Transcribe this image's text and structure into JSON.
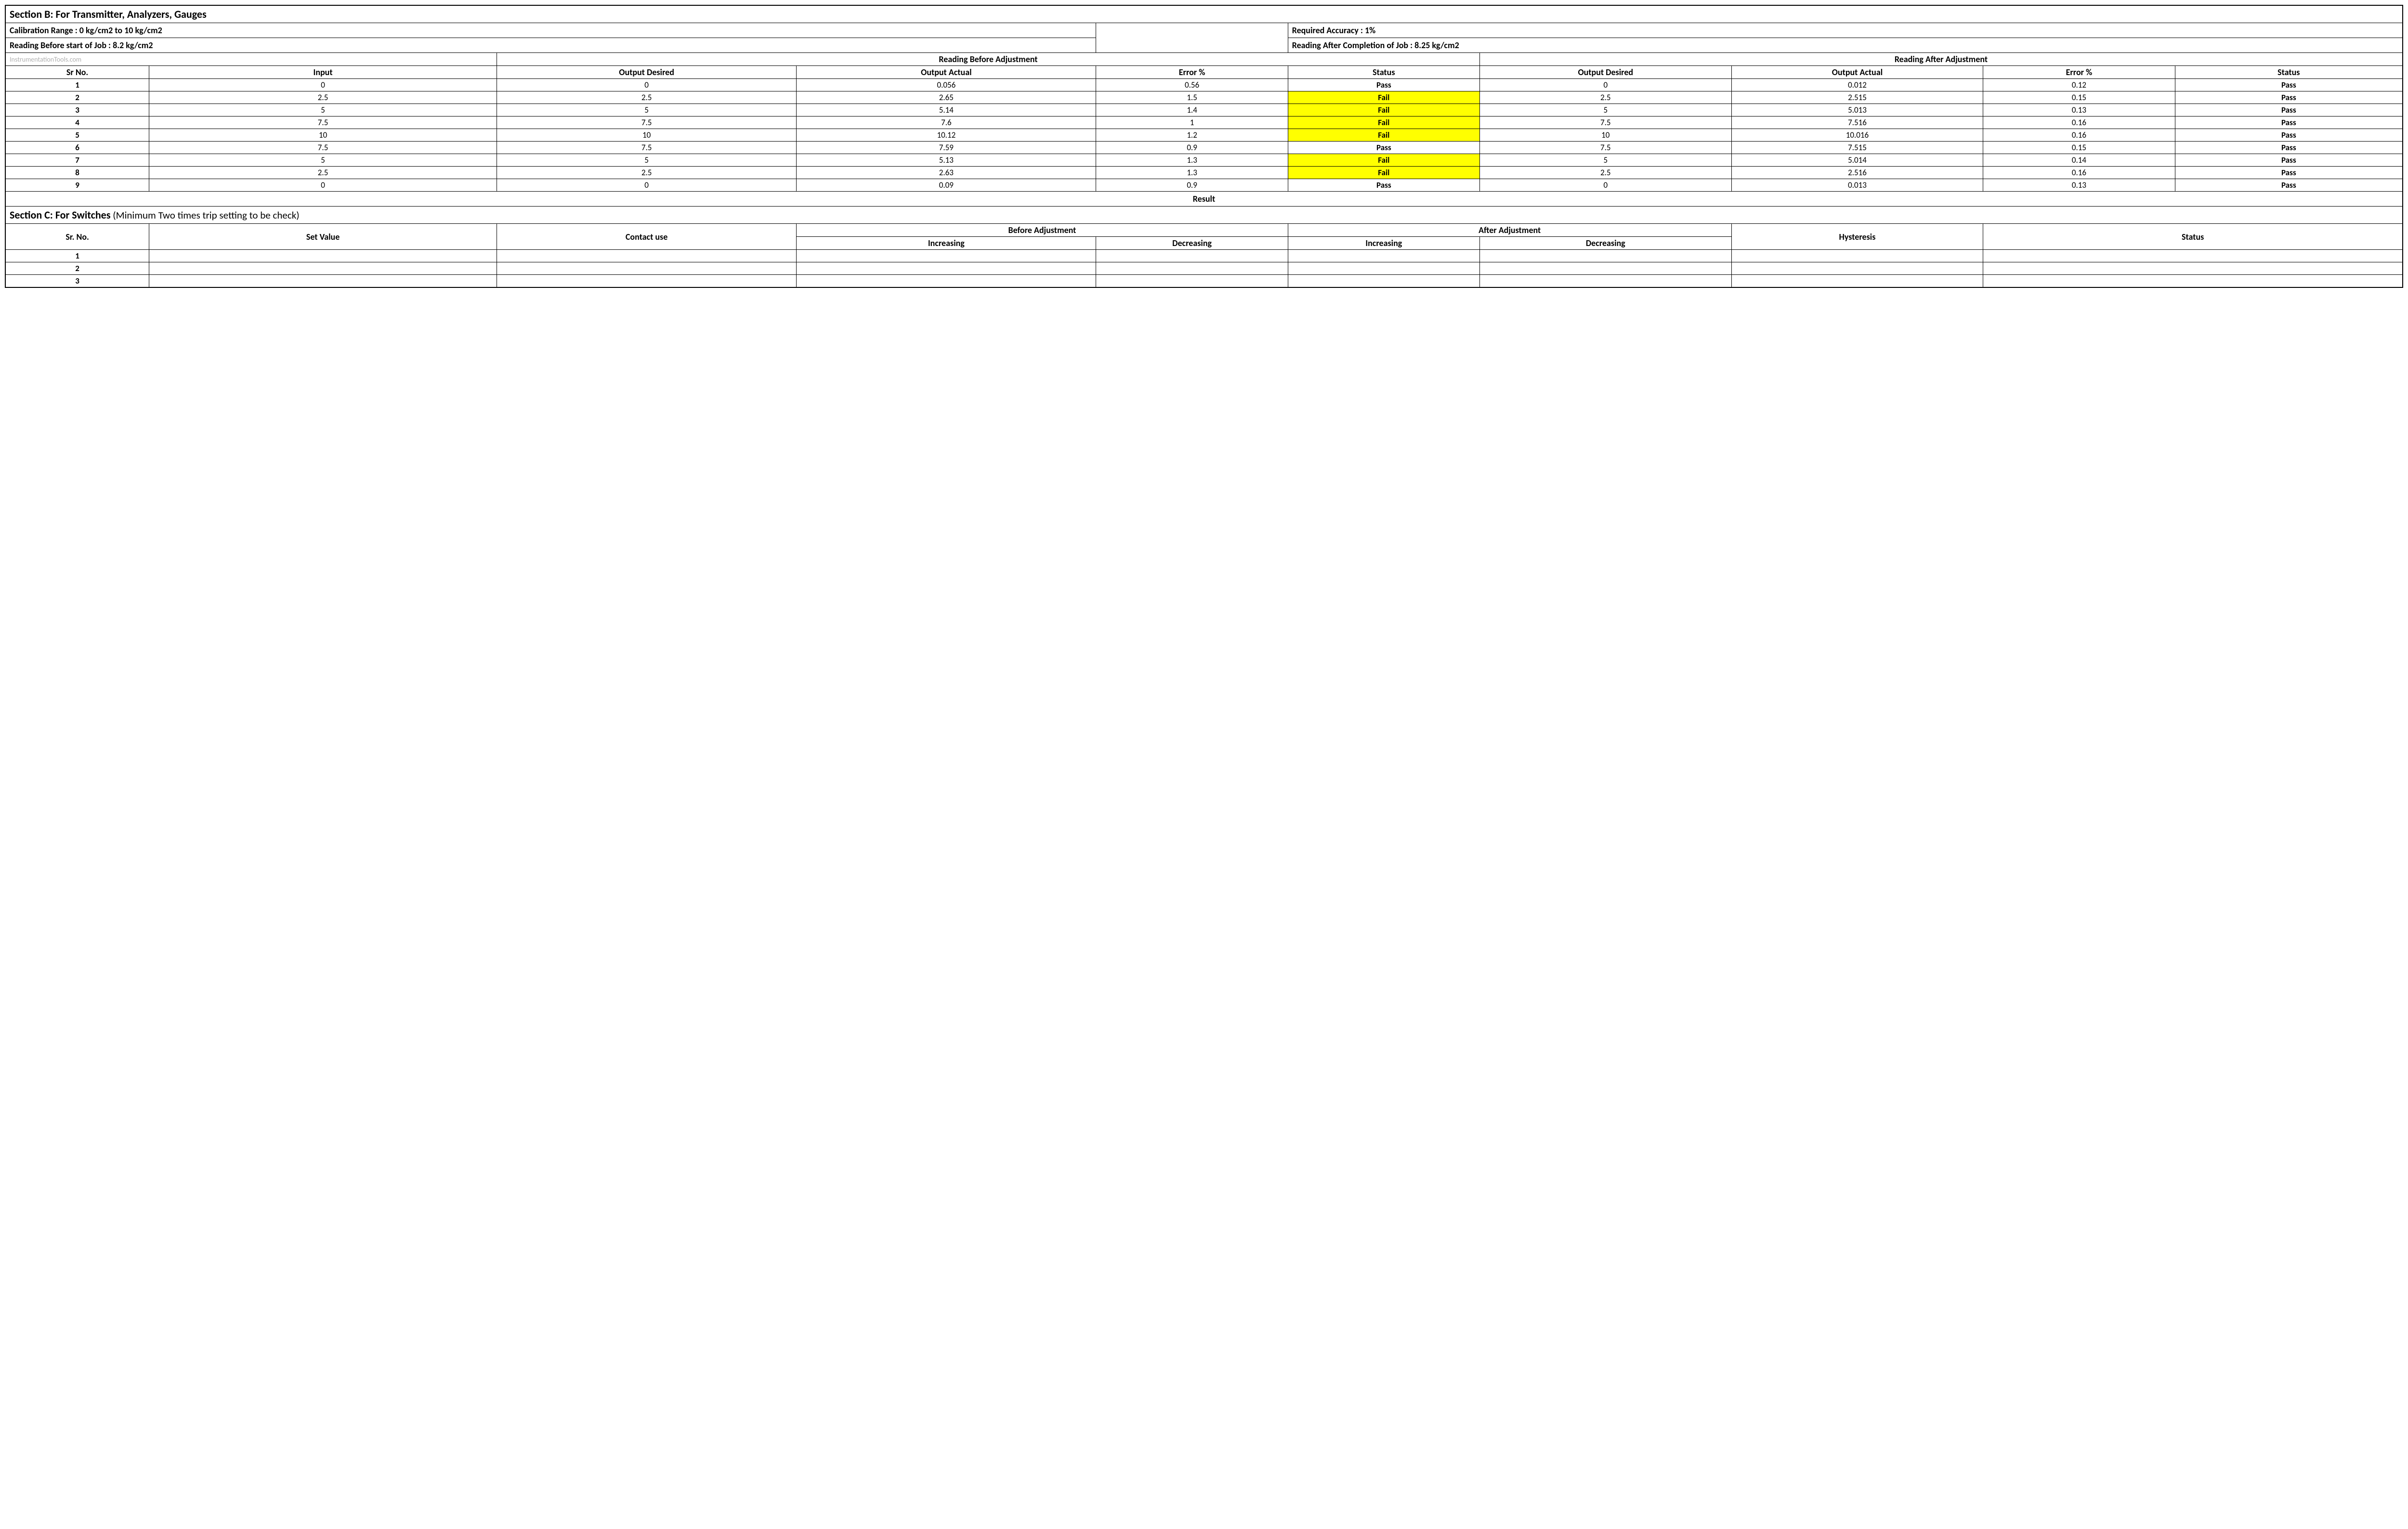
{
  "sectionB": {
    "title": "Section B:  For Transmitter, Analyzers, Gauges",
    "calibration_range": "Calibration Range : 0 kg/cm2 to 10 kg/cm2",
    "required_accuracy": "Required Accuracy : 1%",
    "reading_before_job": "Reading Before start of Job : 8.2 kg/cm2",
    "reading_after_job": "Reading After Completion of Job : 8.25 kg/cm2",
    "watermark": "InstrumentationTools.com",
    "group_before": "Reading Before Adjustment",
    "group_after": "Reading After Adjustment",
    "columns": {
      "sr": "Sr No.",
      "input": "Input",
      "out_desired": "Output Desired",
      "out_actual": "Output Actual",
      "error": "Error %",
      "status": "Status"
    },
    "rows": [
      {
        "sr": "1",
        "input": "0",
        "b_desired": "0",
        "b_actual": "0.056",
        "b_error": "0.56",
        "b_status": "Pass",
        "a_desired": "0",
        "a_actual": "0.012",
        "a_error": "0.12",
        "a_status": "Pass"
      },
      {
        "sr": "2",
        "input": "2.5",
        "b_desired": "2.5",
        "b_actual": "2.65",
        "b_error": "1.5",
        "b_status": "Fail",
        "a_desired": "2.5",
        "a_actual": "2.515",
        "a_error": "0.15",
        "a_status": "Pass"
      },
      {
        "sr": "3",
        "input": "5",
        "b_desired": "5",
        "b_actual": "5.14",
        "b_error": "1.4",
        "b_status": "Fail",
        "a_desired": "5",
        "a_actual": "5.013",
        "a_error": "0.13",
        "a_status": "Pass"
      },
      {
        "sr": "4",
        "input": "7.5",
        "b_desired": "7.5",
        "b_actual": "7.6",
        "b_error": "1",
        "b_status": "Fail",
        "a_desired": "7.5",
        "a_actual": "7.516",
        "a_error": "0.16",
        "a_status": "Pass"
      },
      {
        "sr": "5",
        "input": "10",
        "b_desired": "10",
        "b_actual": "10.12",
        "b_error": "1.2",
        "b_status": "Fail",
        "a_desired": "10",
        "a_actual": "10.016",
        "a_error": "0.16",
        "a_status": "Pass"
      },
      {
        "sr": "6",
        "input": "7.5",
        "b_desired": "7.5",
        "b_actual": "7.59",
        "b_error": "0.9",
        "b_status": "Pass",
        "a_desired": "7.5",
        "a_actual": "7.515",
        "a_error": "0.15",
        "a_status": "Pass"
      },
      {
        "sr": "7",
        "input": "5",
        "b_desired": "5",
        "b_actual": "5.13",
        "b_error": "1.3",
        "b_status": "Fail",
        "a_desired": "5",
        "a_actual": "5.014",
        "a_error": "0.14",
        "a_status": "Pass"
      },
      {
        "sr": "8",
        "input": "2.5",
        "b_desired": "2.5",
        "b_actual": "2.63",
        "b_error": "1.3",
        "b_status": "Fail",
        "a_desired": "2.5",
        "a_actual": "2.516",
        "a_error": "0.16",
        "a_status": "Pass"
      },
      {
        "sr": "9",
        "input": "0",
        "b_desired": "0",
        "b_actual": "0.09",
        "b_error": "0.9",
        "b_status": "Pass",
        "a_desired": "0",
        "a_actual": "0.013",
        "a_error": "0.13",
        "a_status": "Pass"
      }
    ],
    "result_label": "Result"
  },
  "sectionC": {
    "title_bold": "Section C:  For Switches",
    "title_note": "  (Minimum Two times trip setting to be check)",
    "columns": {
      "sr": "Sr. No.",
      "set_value": "Set Value",
      "contact_use": "Contact use",
      "before": "Before Adjustment",
      "after": "After Adjustment",
      "increasing": "Increasing",
      "decreasing": "Decreasing",
      "hysteresis": "Hysteresis",
      "status": "Status"
    },
    "rows": [
      {
        "sr": "1"
      },
      {
        "sr": "2"
      },
      {
        "sr": "3"
      }
    ]
  },
  "style": {
    "fail_bg": "#ffff00",
    "border_color": "#000000",
    "watermark_color": "#b0b0b0"
  }
}
